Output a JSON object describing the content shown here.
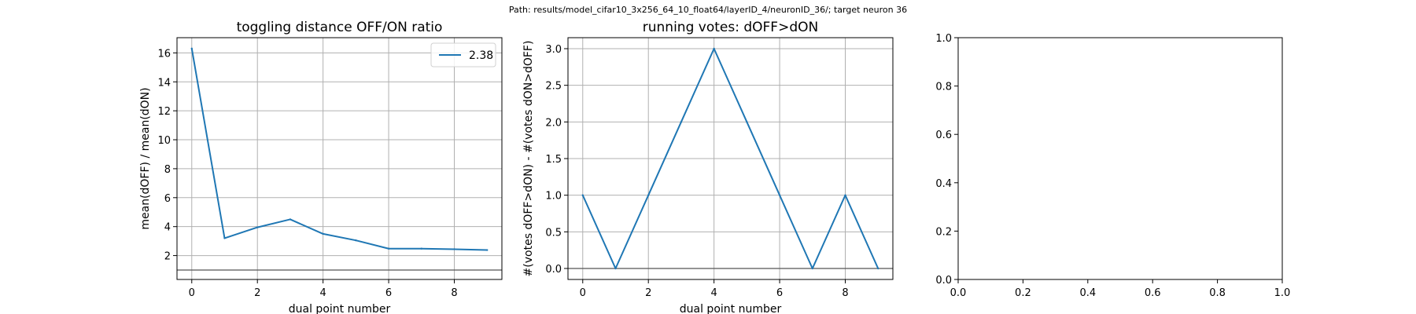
{
  "figure": {
    "suptitle": "Path: results/model_cifar10_3x256_64_10_float64/layerID_4/neuronID_36/; target neuron 36"
  },
  "colors": {
    "series": "#1f77b4",
    "grid": "#b0b0b0",
    "hline": "#555555",
    "frame": "#000000"
  },
  "chart_data": [
    {
      "type": "line",
      "title": "toggling distance OFF/ON ratio",
      "xlabel": "dual point number",
      "ylabel": "mean(dOFF) / mean(dON)",
      "xlim": [
        -0.45,
        9.45
      ],
      "ylim": [
        0.35,
        17.05
      ],
      "xticks": [
        0,
        2,
        4,
        6,
        8
      ],
      "yticks": [
        2,
        4,
        6,
        8,
        10,
        12,
        14,
        16
      ],
      "grid": true,
      "legend": {
        "location": "upper right",
        "entries": [
          "2.38"
        ]
      },
      "hline": 1.0,
      "series": [
        {
          "name": "2.38",
          "x": [
            0,
            1,
            2,
            3,
            4,
            5,
            6,
            7,
            8,
            9
          ],
          "y": [
            16.3,
            3.2,
            3.95,
            4.5,
            3.5,
            3.05,
            2.48,
            2.48,
            2.44,
            2.38
          ]
        }
      ]
    },
    {
      "type": "line",
      "title": "running votes: dOFF>dON",
      "xlabel": "dual point number",
      "ylabel": "#(votes dOFF>dON) - #(votes dON>dOFF)",
      "xlim": [
        -0.45,
        9.45
      ],
      "ylim": [
        -0.15,
        3.15
      ],
      "xticks": [
        0,
        2,
        4,
        6,
        8
      ],
      "yticks": [
        0.0,
        0.5,
        1.0,
        1.5,
        2.0,
        2.5,
        3.0
      ],
      "grid": true,
      "hline": 0.0,
      "series": [
        {
          "x": [
            0,
            1,
            2,
            3,
            4,
            5,
            6,
            7,
            8,
            9
          ],
          "y": [
            1,
            0,
            1,
            2,
            3,
            2,
            1,
            0,
            1,
            0
          ]
        }
      ]
    },
    {
      "type": "line",
      "title": "",
      "xlabel": "",
      "ylabel": "",
      "xlim": [
        0.0,
        1.0
      ],
      "ylim": [
        0.0,
        1.0
      ],
      "xticks": [
        0.0,
        0.2,
        0.4,
        0.6,
        0.8,
        1.0
      ],
      "yticks": [
        0.0,
        0.2,
        0.4,
        0.6,
        0.8,
        1.0
      ],
      "grid": false,
      "series": []
    }
  ]
}
